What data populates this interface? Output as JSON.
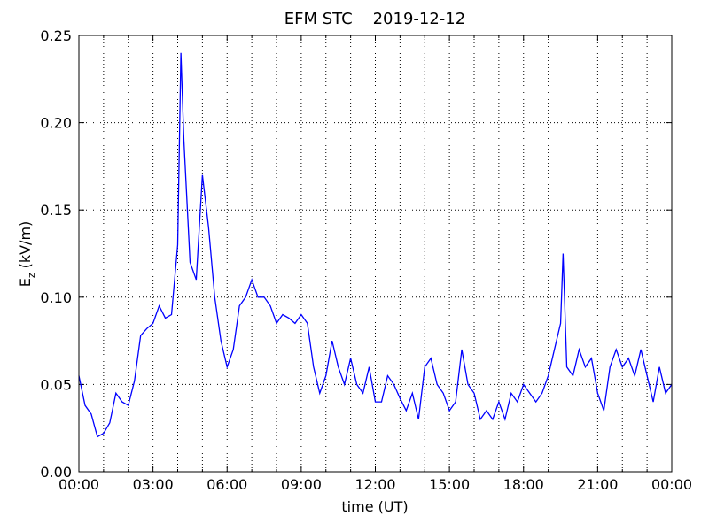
{
  "chart_data": {
    "type": "line",
    "title": "EFM STC    2019-12-12",
    "xlabel": "time (UT)",
    "ylabel": {
      "main": "E",
      "sub": "z",
      "unit": "(kV/m)"
    },
    "x": [
      0,
      0.25,
      0.5,
      0.75,
      1,
      1.25,
      1.5,
      1.75,
      2,
      2.25,
      2.5,
      2.75,
      3,
      3.25,
      3.5,
      3.75,
      4,
      4.13,
      4.25,
      4.5,
      4.75,
      5,
      5.25,
      5.5,
      5.75,
      6,
      6.25,
      6.5,
      6.75,
      7,
      7.25,
      7.5,
      7.75,
      8,
      8.25,
      8.5,
      8.75,
      9,
      9.25,
      9.5,
      9.75,
      10,
      10.25,
      10.5,
      10.75,
      11,
      11.25,
      11.5,
      11.75,
      12,
      12.25,
      12.5,
      12.75,
      13,
      13.25,
      13.5,
      13.75,
      14,
      14.25,
      14.5,
      14.75,
      15,
      15.25,
      15.5,
      15.75,
      16,
      16.25,
      16.5,
      16.75,
      17,
      17.25,
      17.5,
      17.75,
      18,
      18.25,
      18.5,
      18.75,
      19,
      19.25,
      19.5,
      19.6,
      19.75,
      20,
      20.25,
      20.5,
      20.75,
      21,
      21.25,
      21.5,
      21.75,
      22,
      22.25,
      22.5,
      22.75,
      23,
      23.25,
      23.5,
      23.75,
      24
    ],
    "series": [
      {
        "color": "#0000ff",
        "values": [
          0.055,
          0.038,
          0.033,
          0.02,
          0.022,
          0.028,
          0.045,
          0.04,
          0.038,
          0.052,
          0.078,
          0.082,
          0.085,
          0.095,
          0.088,
          0.09,
          0.13,
          0.24,
          0.19,
          0.12,
          0.11,
          0.17,
          0.14,
          0.1,
          0.075,
          0.06,
          0.07,
          0.095,
          0.1,
          0.11,
          0.1,
          0.1,
          0.095,
          0.085,
          0.09,
          0.088,
          0.085,
          0.09,
          0.085,
          0.06,
          0.045,
          0.055,
          0.075,
          0.06,
          0.05,
          0.065,
          0.05,
          0.045,
          0.06,
          0.04,
          0.04,
          0.055,
          0.05,
          0.042,
          0.035,
          0.045,
          0.03,
          0.06,
          0.065,
          0.05,
          0.045,
          0.035,
          0.04,
          0.07,
          0.05,
          0.045,
          0.03,
          0.035,
          0.03,
          0.04,
          0.03,
          0.045,
          0.04,
          0.05,
          0.045,
          0.04,
          0.045,
          0.055,
          0.07,
          0.085,
          0.125,
          0.06,
          0.055,
          0.07,
          0.06,
          0.065,
          0.045,
          0.035,
          0.06,
          0.07,
          0.06,
          0.065,
          0.055,
          0.07,
          0.055,
          0.04,
          0.06,
          0.045,
          0.05
        ]
      }
    ],
    "xlim": [
      0,
      24
    ],
    "ylim": [
      0,
      0.25
    ],
    "xticks": [
      {
        "value": 0,
        "label": "00:00"
      },
      {
        "value": 3,
        "label": "03:00"
      },
      {
        "value": 6,
        "label": "06:00"
      },
      {
        "value": 9,
        "label": "09:00"
      },
      {
        "value": 12,
        "label": "12:00"
      },
      {
        "value": 15,
        "label": "15:00"
      },
      {
        "value": 18,
        "label": "18:00"
      },
      {
        "value": 21,
        "label": "21:00"
      },
      {
        "value": 24,
        "label": "00:00"
      }
    ],
    "xminorticks": [
      1,
      2,
      4,
      5,
      7,
      8,
      10,
      11,
      13,
      14,
      16,
      17,
      19,
      20,
      22,
      23
    ],
    "yticks": [
      {
        "value": 0,
        "label": "0.00"
      },
      {
        "value": 0.05,
        "label": "0.05"
      },
      {
        "value": 0.1,
        "label": "0.10"
      },
      {
        "value": 0.15,
        "label": "0.15"
      },
      {
        "value": 0.2,
        "label": "0.20"
      },
      {
        "value": 0.25,
        "label": "0.25"
      }
    ],
    "grid": true
  }
}
